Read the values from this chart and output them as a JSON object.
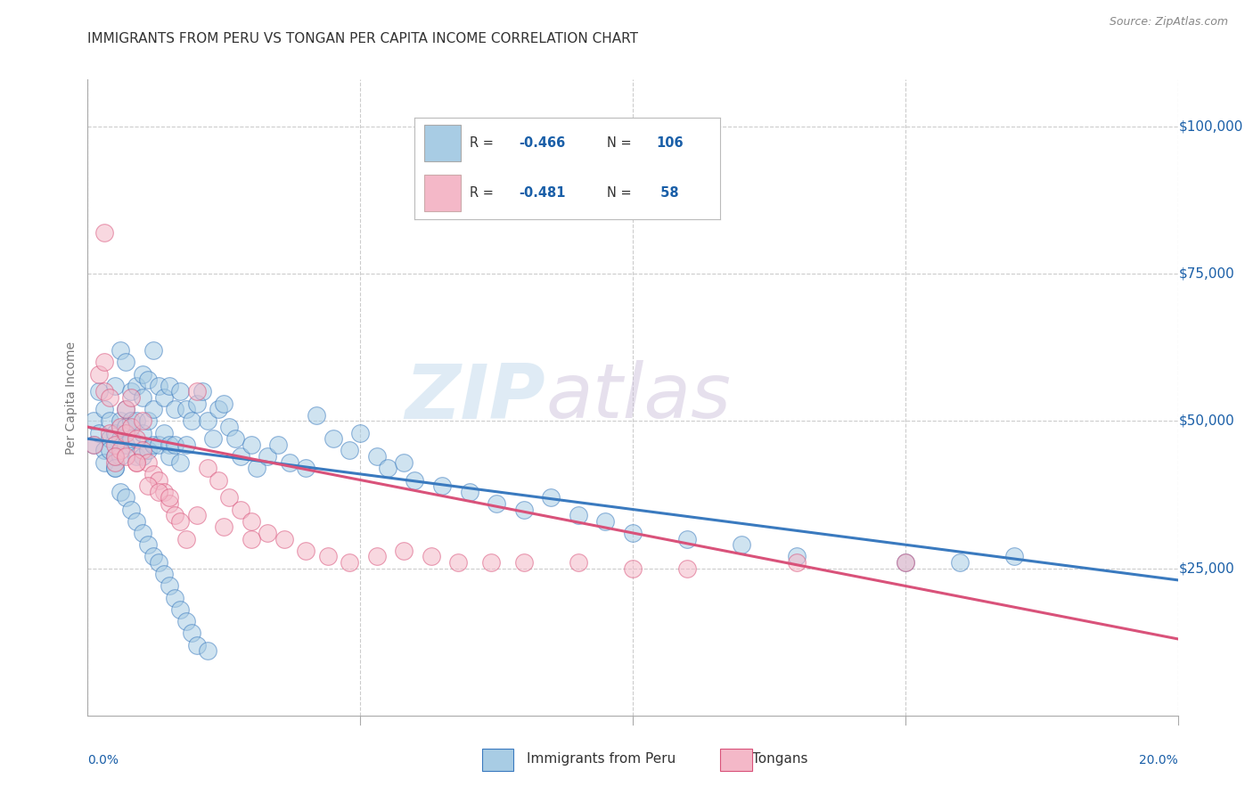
{
  "title": "IMMIGRANTS FROM PERU VS TONGAN PER CAPITA INCOME CORRELATION CHART",
  "source": "Source: ZipAtlas.com",
  "ylabel": "Per Capita Income",
  "yticks": [
    0,
    25000,
    50000,
    75000,
    100000
  ],
  "ytick_labels": [
    "",
    "$25,000",
    "$50,000",
    "$75,000",
    "$100,000"
  ],
  "xlim": [
    0.0,
    0.2
  ],
  "ylim": [
    0,
    108000
  ],
  "watermark_zip": "ZIP",
  "watermark_atlas": "atlas",
  "blue_color": "#a8cce4",
  "pink_color": "#f4b8c8",
  "line_blue": "#3a7abf",
  "line_pink": "#d9527a",
  "text_blue": "#1a5fa8",
  "title_color": "#333333",
  "grid_color": "#cccccc",
  "background": "#ffffff",
  "peru_scatter_x": [
    0.001,
    0.001,
    0.002,
    0.002,
    0.003,
    0.003,
    0.003,
    0.004,
    0.004,
    0.004,
    0.005,
    0.005,
    0.005,
    0.005,
    0.006,
    0.006,
    0.006,
    0.006,
    0.007,
    0.007,
    0.007,
    0.007,
    0.008,
    0.008,
    0.008,
    0.009,
    0.009,
    0.009,
    0.01,
    0.01,
    0.01,
    0.01,
    0.011,
    0.011,
    0.011,
    0.012,
    0.012,
    0.012,
    0.013,
    0.013,
    0.014,
    0.014,
    0.015,
    0.015,
    0.015,
    0.016,
    0.016,
    0.017,
    0.017,
    0.018,
    0.018,
    0.019,
    0.02,
    0.021,
    0.022,
    0.023,
    0.024,
    0.025,
    0.026,
    0.027,
    0.028,
    0.03,
    0.031,
    0.033,
    0.035,
    0.037,
    0.04,
    0.042,
    0.045,
    0.048,
    0.05,
    0.053,
    0.055,
    0.058,
    0.06,
    0.065,
    0.07,
    0.075,
    0.08,
    0.085,
    0.09,
    0.095,
    0.1,
    0.11,
    0.12,
    0.13,
    0.15,
    0.16,
    0.17,
    0.005,
    0.006,
    0.007,
    0.008,
    0.009,
    0.01,
    0.011,
    0.012,
    0.013,
    0.014,
    0.015,
    0.016,
    0.017,
    0.018,
    0.019,
    0.02,
    0.022
  ],
  "peru_scatter_y": [
    46000,
    50000,
    55000,
    48000,
    52000,
    45000,
    43000,
    50000,
    47000,
    45000,
    56000,
    48000,
    44000,
    42000,
    62000,
    50000,
    47000,
    44000,
    60000,
    52000,
    49000,
    46000,
    55000,
    50000,
    47000,
    56000,
    50000,
    44000,
    58000,
    54000,
    48000,
    44000,
    57000,
    50000,
    45000,
    62000,
    52000,
    46000,
    56000,
    46000,
    54000,
    48000,
    56000,
    46000,
    44000,
    52000,
    46000,
    55000,
    43000,
    52000,
    46000,
    50000,
    53000,
    55000,
    50000,
    47000,
    52000,
    53000,
    49000,
    47000,
    44000,
    46000,
    42000,
    44000,
    46000,
    43000,
    42000,
    51000,
    47000,
    45000,
    48000,
    44000,
    42000,
    43000,
    40000,
    39000,
    38000,
    36000,
    35000,
    37000,
    34000,
    33000,
    31000,
    30000,
    29000,
    27000,
    26000,
    26000,
    27000,
    42000,
    38000,
    37000,
    35000,
    33000,
    31000,
    29000,
    27000,
    26000,
    24000,
    22000,
    20000,
    18000,
    16000,
    14000,
    12000,
    11000
  ],
  "tongan_scatter_x": [
    0.001,
    0.002,
    0.003,
    0.003,
    0.004,
    0.004,
    0.005,
    0.005,
    0.006,
    0.006,
    0.007,
    0.007,
    0.008,
    0.008,
    0.009,
    0.009,
    0.01,
    0.01,
    0.011,
    0.012,
    0.013,
    0.014,
    0.015,
    0.016,
    0.017,
    0.018,
    0.02,
    0.022,
    0.024,
    0.026,
    0.028,
    0.03,
    0.033,
    0.036,
    0.04,
    0.044,
    0.048,
    0.053,
    0.058,
    0.063,
    0.068,
    0.074,
    0.08,
    0.09,
    0.1,
    0.11,
    0.13,
    0.15,
    0.003,
    0.005,
    0.007,
    0.009,
    0.011,
    0.013,
    0.015,
    0.02,
    0.025,
    0.03
  ],
  "tongan_scatter_y": [
    46000,
    58000,
    60000,
    55000,
    54000,
    48000,
    46000,
    43000,
    49000,
    45000,
    52000,
    48000,
    54000,
    49000,
    47000,
    43000,
    50000,
    45000,
    43000,
    41000,
    40000,
    38000,
    36000,
    34000,
    33000,
    30000,
    55000,
    42000,
    40000,
    37000,
    35000,
    33000,
    31000,
    30000,
    28000,
    27000,
    26000,
    27000,
    28000,
    27000,
    26000,
    26000,
    26000,
    26000,
    25000,
    25000,
    26000,
    26000,
    82000,
    44000,
    44000,
    43000,
    39000,
    38000,
    37000,
    34000,
    32000,
    30000
  ],
  "peru_line_x": [
    0.0,
    0.2
  ],
  "peru_line_y": [
    47000,
    23000
  ],
  "tongan_line_x": [
    0.0,
    0.2
  ],
  "tongan_line_y": [
    49000,
    13000
  ]
}
